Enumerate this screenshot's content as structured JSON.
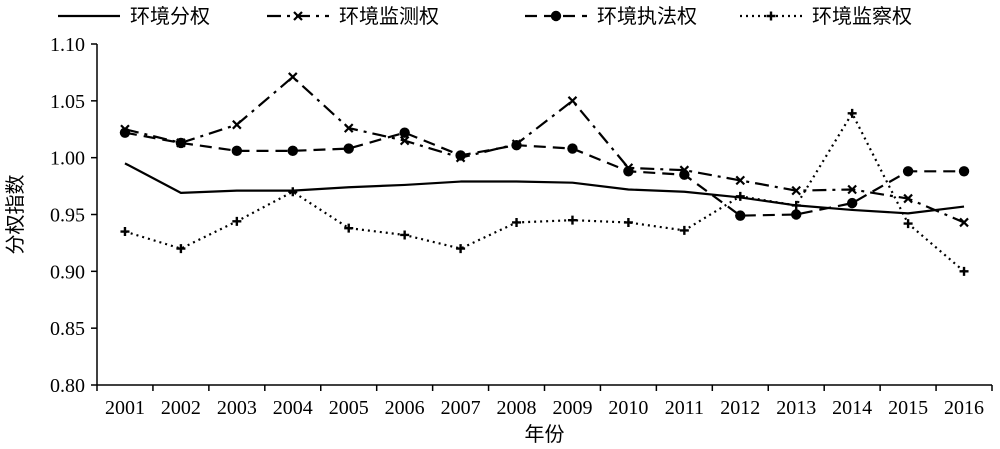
{
  "chart_data": {
    "type": "line",
    "title": "",
    "xlabel": "年份",
    "ylabel": "分权指数",
    "ylim": [
      0.8,
      1.1
    ],
    "yticks": [
      "0.80",
      "0.85",
      "0.90",
      "0.95",
      "1.00",
      "1.05",
      "1.10"
    ],
    "x": [
      "2001",
      "2002",
      "2003",
      "2004",
      "2005",
      "2006",
      "2007",
      "2008",
      "2009",
      "2010",
      "2011",
      "2012",
      "2013",
      "2014",
      "2015",
      "2016"
    ],
    "grid": false,
    "legend_position": "top",
    "series": [
      {
        "name": "环境分权",
        "style": "solid",
        "marker": "none",
        "color": "#000000",
        "values": [
          0.995,
          0.969,
          0.971,
          0.971,
          0.974,
          0.976,
          0.979,
          0.979,
          0.978,
          0.972,
          0.97,
          0.965,
          0.958,
          0.954,
          0.951,
          0.957
        ]
      },
      {
        "name": "环境监测权",
        "style": "dashdot",
        "marker": "x",
        "color": "#000000",
        "values": [
          1.025,
          1.013,
          1.029,
          1.071,
          1.026,
          1.015,
          1.0,
          1.012,
          1.05,
          0.991,
          0.989,
          0.98,
          0.971,
          0.972,
          0.964,
          0.943
        ]
      },
      {
        "name": "环境执法权",
        "style": "dashed",
        "marker": "circle",
        "color": "#000000",
        "values": [
          1.022,
          1.013,
          1.006,
          1.006,
          1.008,
          1.022,
          1.002,
          1.011,
          1.008,
          0.988,
          0.985,
          0.949,
          0.95,
          0.96,
          0.988,
          0.988
        ]
      },
      {
        "name": "环境监察权",
        "style": "dotted",
        "marker": "plus",
        "color": "#000000",
        "values": [
          0.935,
          0.92,
          0.944,
          0.97,
          0.938,
          0.932,
          0.92,
          0.943,
          0.945,
          0.943,
          0.936,
          0.966,
          0.958,
          1.039,
          0.942,
          0.9
        ]
      }
    ]
  }
}
